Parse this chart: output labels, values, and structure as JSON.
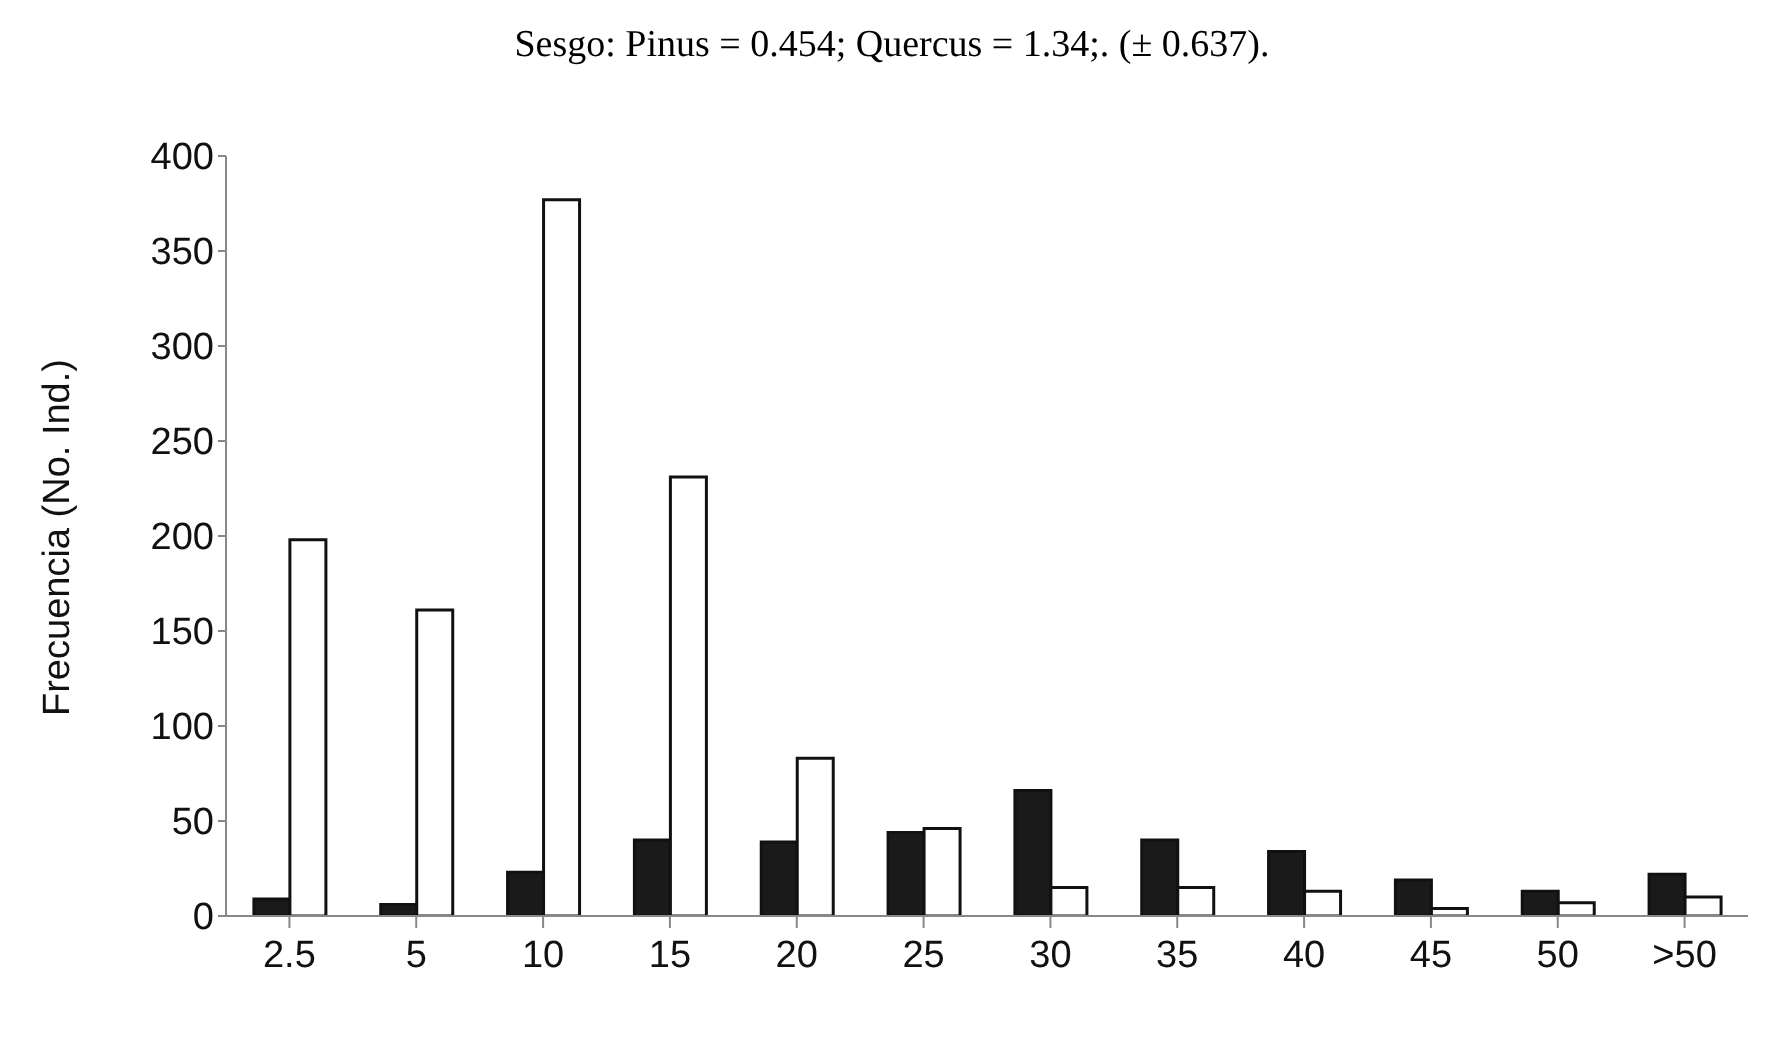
{
  "chart_data": {
    "type": "bar",
    "title": "Sesgo: Pinus = 0.454; Quercus = 1.34;. (± 0.637).",
    "ylabel": "Frecuencia (No. Ind.)",
    "categories": [
      "2.5",
      "5",
      "10",
      "15",
      "20",
      "25",
      "30",
      "35",
      "40",
      "45",
      "50",
      ">50"
    ],
    "series": [
      {
        "color": "#1a1a1a",
        "values": [
          9,
          6,
          23,
          40,
          39,
          44,
          66,
          40,
          34,
          19,
          13,
          22
        ]
      },
      {
        "color": "#ffffff",
        "values": [
          198,
          161,
          377,
          231,
          83,
          46,
          15,
          15,
          13,
          4,
          7,
          10
        ]
      }
    ],
    "ylim": [
      0,
      400
    ],
    "yticks": [
      0,
      50,
      100,
      150,
      200,
      250,
      300,
      350,
      400
    ],
    "grid": false,
    "legend": false
  }
}
